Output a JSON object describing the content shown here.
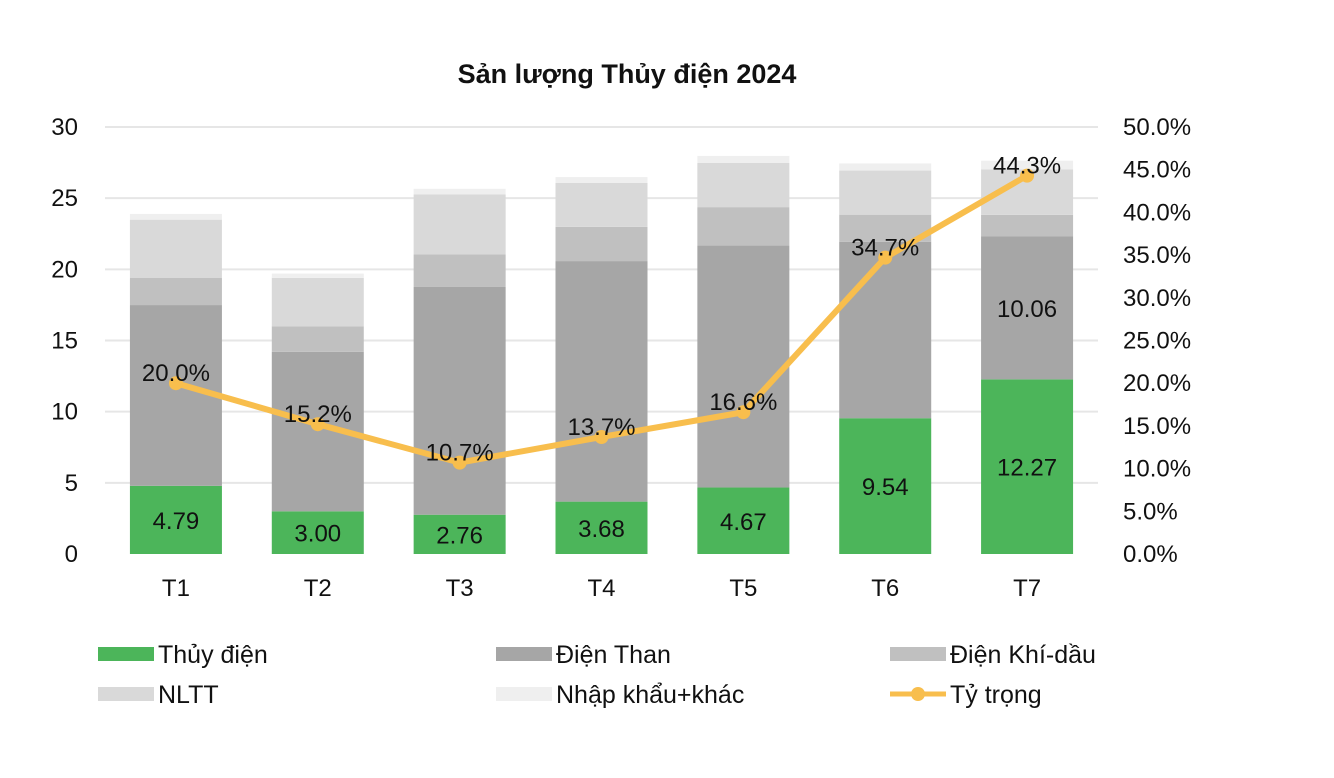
{
  "chart_data": {
    "type": "bar",
    "stacked": true,
    "title": "Sản lượng Thủy điện 2024",
    "categories": [
      "T1",
      "T2",
      "T3",
      "T4",
      "T5",
      "T6",
      "T7"
    ],
    "y_left": {
      "min": 0,
      "max": 30,
      "step": 5,
      "tick_labels": [
        "0",
        "5",
        "10",
        "15",
        "20",
        "25",
        "30"
      ]
    },
    "y_right": {
      "min": 0,
      "max": 50,
      "step": 5,
      "tick_labels": [
        "0.0%",
        "5.0%",
        "10.0%",
        "15.0%",
        "20.0%",
        "25.0%",
        "30.0%",
        "35.0%",
        "40.0%",
        "45.0%",
        "50.0%"
      ]
    },
    "grid": true,
    "legend_position": "bottom",
    "series": [
      {
        "name": "Thủy điện",
        "kind": "bar",
        "color": "#4cb55a",
        "values": [
          4.79,
          3.0,
          2.76,
          3.68,
          4.67,
          9.54,
          12.27
        ],
        "data_labels": [
          "4.79",
          "3.00",
          "2.76",
          "3.68",
          "4.67",
          "9.54",
          "12.27"
        ]
      },
      {
        "name": "Điện Than",
        "kind": "bar",
        "color": "#a6a6a6",
        "values": [
          12.7,
          11.2,
          16.0,
          16.9,
          17.0,
          12.4,
          10.06
        ],
        "data_labels": [
          "",
          "",
          "",
          "",
          "",
          "",
          "10.06"
        ]
      },
      {
        "name": "Điện Khí-dầu",
        "kind": "bar",
        "color": "#c0c0c0",
        "values": [
          1.9,
          1.8,
          2.3,
          2.4,
          2.7,
          1.9,
          1.5
        ],
        "data_labels": [
          "",
          "",
          "",
          "",
          "",
          "",
          ""
        ]
      },
      {
        "name": "NLTT",
        "kind": "bar",
        "color": "#d9d9d9",
        "values": [
          4.1,
          3.4,
          4.2,
          3.1,
          3.1,
          3.1,
          3.2
        ],
        "data_labels": [
          "",
          "",
          "",
          "",
          "",
          "",
          ""
        ]
      },
      {
        "name": "Nhập khẩu+khác",
        "kind": "bar",
        "color": "#efefef",
        "values": [
          0.4,
          0.3,
          0.4,
          0.4,
          0.5,
          0.5,
          0.6
        ],
        "data_labels": [
          "",
          "",
          "",
          "",
          "",
          "",
          ""
        ]
      },
      {
        "name": "Tỷ trọng",
        "kind": "line",
        "axis": "right",
        "color": "#f8be4d",
        "values": [
          20.0,
          15.2,
          10.7,
          13.7,
          16.6,
          34.7,
          44.3
        ],
        "data_labels": [
          "20.0%",
          "15.2%",
          "10.7%",
          "13.7%",
          "16.6%",
          "34.7%",
          "44.3%"
        ]
      }
    ]
  }
}
